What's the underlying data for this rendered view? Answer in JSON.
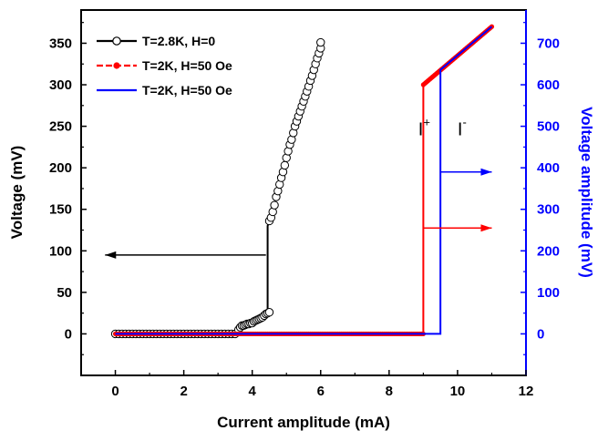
{
  "chart_data": {
    "type": "scatter",
    "xlabel": "Current amplitude (mA)",
    "ylabel_left": "Voltage (mV)",
    "ylabel_right": "Voltage amplitude (mV)",
    "xlim": [
      -1,
      12
    ],
    "xticks": [
      0,
      2,
      4,
      6,
      8,
      10,
      12
    ],
    "ylim_left": [
      -50,
      390
    ],
    "yticks_left": [
      0,
      50,
      100,
      150,
      200,
      250,
      300,
      350
    ],
    "ylim_right": [
      -100,
      780
    ],
    "yticks_right": [
      0,
      100,
      200,
      300,
      400,
      500,
      600,
      700
    ],
    "legend_position": "top-left",
    "grid": false,
    "series": [
      {
        "name": "T=2.8K, H=0",
        "axis": "left",
        "color": "#000000",
        "marker": "open-circle",
        "points": [
          [
            0.0,
            0
          ],
          [
            0.1,
            0
          ],
          [
            0.2,
            0
          ],
          [
            0.3,
            0
          ],
          [
            0.4,
            0
          ],
          [
            0.5,
            0
          ],
          [
            0.6,
            0
          ],
          [
            0.7,
            0
          ],
          [
            0.8,
            0
          ],
          [
            0.9,
            0
          ],
          [
            1.0,
            0
          ],
          [
            1.1,
            0
          ],
          [
            1.2,
            0
          ],
          [
            1.3,
            0
          ],
          [
            1.4,
            0
          ],
          [
            1.5,
            0
          ],
          [
            1.6,
            0
          ],
          [
            1.7,
            0
          ],
          [
            1.8,
            0
          ],
          [
            1.9,
            0
          ],
          [
            2.0,
            0
          ],
          [
            2.1,
            0
          ],
          [
            2.2,
            0
          ],
          [
            2.3,
            0
          ],
          [
            2.4,
            0
          ],
          [
            2.5,
            0
          ],
          [
            2.6,
            0
          ],
          [
            2.7,
            0
          ],
          [
            2.8,
            0
          ],
          [
            2.9,
            0
          ],
          [
            3.0,
            0
          ],
          [
            3.1,
            0
          ],
          [
            3.2,
            0
          ],
          [
            3.3,
            0
          ],
          [
            3.4,
            0
          ],
          [
            3.5,
            0
          ],
          [
            3.6,
            5
          ],
          [
            3.65,
            8
          ],
          [
            3.7,
            10
          ],
          [
            3.75,
            10
          ],
          [
            3.8,
            11
          ],
          [
            3.85,
            12
          ],
          [
            3.9,
            12
          ],
          [
            3.95,
            13
          ],
          [
            4.0,
            13
          ],
          [
            4.05,
            15
          ],
          [
            4.1,
            16
          ],
          [
            4.15,
            17
          ],
          [
            4.2,
            18
          ],
          [
            4.25,
            19
          ],
          [
            4.3,
            20
          ],
          [
            4.35,
            22
          ],
          [
            4.4,
            24
          ],
          [
            4.45,
            25
          ],
          [
            4.5,
            26
          ],
          [
            4.5,
            136
          ],
          [
            4.55,
            140
          ],
          [
            4.6,
            147
          ],
          [
            4.65,
            155
          ],
          [
            4.7,
            165
          ],
          [
            4.75,
            172
          ],
          [
            4.8,
            180
          ],
          [
            4.85,
            188
          ],
          [
            4.9,
            195
          ],
          [
            4.95,
            203
          ],
          [
            5.0,
            212
          ],
          [
            5.05,
            220
          ],
          [
            5.1,
            228
          ],
          [
            5.15,
            234
          ],
          [
            5.2,
            242
          ],
          [
            5.25,
            250
          ],
          [
            5.3,
            256
          ],
          [
            5.35,
            262
          ],
          [
            5.4,
            268
          ],
          [
            5.45,
            274
          ],
          [
            5.5,
            280
          ],
          [
            5.55,
            286
          ],
          [
            5.6,
            292
          ],
          [
            5.65,
            298
          ],
          [
            5.7,
            305
          ],
          [
            5.75,
            311
          ],
          [
            5.8,
            318
          ],
          [
            5.85,
            325
          ],
          [
            5.9,
            332
          ],
          [
            5.95,
            338
          ],
          [
            6.0,
            344
          ],
          [
            6.0,
            351
          ]
        ],
        "line": [
          [
            0,
            0
          ],
          [
            3.5,
            0
          ],
          [
            3.8,
            8
          ],
          [
            4.0,
            12
          ],
          [
            4.45,
            22
          ],
          [
            4.45,
            130
          ],
          [
            4.5,
            136
          ]
        ]
      },
      {
        "name": "T=2K, H=50 Oe",
        "axis": "right",
        "color": "#ff0000",
        "marker": "filled-circle",
        "points": [
          [
            0,
            0
          ],
          [
            9.0,
            0
          ],
          [
            9.0,
            600
          ],
          [
            11.0,
            740
          ]
        ],
        "line": [
          [
            0,
            0
          ],
          [
            9.0,
            0
          ],
          [
            9.0,
            600
          ],
          [
            11.0,
            740
          ]
        ]
      },
      {
        "name": "T=2K, H=50 Oe",
        "axis": "right",
        "color": "#0000ff",
        "marker": "none",
        "line": [
          [
            0,
            0
          ],
          [
            9.5,
            0
          ],
          [
            9.5,
            636
          ],
          [
            11.0,
            740
          ]
        ]
      }
    ],
    "annotations": [
      {
        "text": "I",
        "sup": "+",
        "x": 8.85,
        "y_right": 500
      },
      {
        "text": "I",
        "sup": "-",
        "x": 10.0,
        "y_right": 500
      }
    ],
    "arrows": [
      {
        "color": "#000000",
        "from": [
          4.4,
          95
        ],
        "to": [
          -0.3,
          95
        ],
        "axis": "left"
      },
      {
        "color": "#ff0000",
        "from": [
          9.0,
          255
        ],
        "to": [
          11.0,
          255
        ],
        "axis": "right"
      },
      {
        "color": "#0000ff",
        "from": [
          9.5,
          390
        ],
        "to": [
          11.0,
          390
        ],
        "axis": "right"
      }
    ]
  }
}
